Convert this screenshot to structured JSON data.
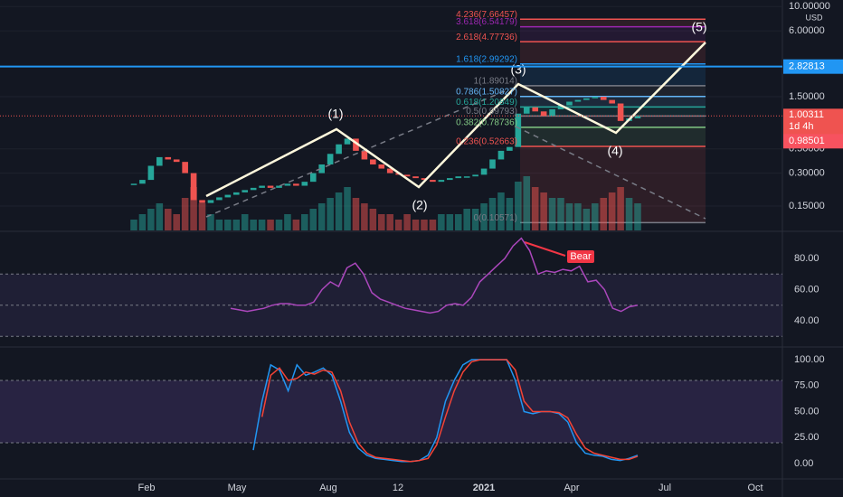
{
  "price_axis": {
    "unit": "USD",
    "ticks": [
      {
        "value": 10,
        "label": "10.00000"
      },
      {
        "value": 6,
        "label": "6.00000"
      },
      {
        "value": 1.5,
        "label": "1.50000"
      },
      {
        "value": 0.5,
        "label": "0.50000"
      },
      {
        "value": 0.3,
        "label": "0.30000"
      },
      {
        "value": 0.15,
        "label": "0.15000"
      }
    ]
  },
  "closes": [
    0.24,
    0.26,
    0.35,
    0.42,
    0.4,
    0.38,
    0.3,
    0.17,
    0.16,
    0.17,
    0.18,
    0.19,
    0.2,
    0.21,
    0.22,
    0.23,
    0.22,
    0.23,
    0.24,
    0.23,
    0.25,
    0.3,
    0.36,
    0.45,
    0.55,
    0.62,
    0.48,
    0.4,
    0.36,
    0.33,
    0.3,
    0.29,
    0.28,
    0.27,
    0.26,
    0.25,
    0.26,
    0.27,
    0.28,
    0.28,
    0.29,
    0.33,
    0.4,
    0.48,
    0.52,
    1.05,
    1.2,
    1.1,
    1.0,
    1.15,
    1.25,
    1.35,
    1.4,
    1.45,
    1.5,
    1.4,
    1.3,
    0.9,
    0.95,
    1.0
  ],
  "volumes": [
    2,
    3,
    4,
    5,
    4,
    3,
    6,
    8,
    5,
    3,
    2,
    2,
    2,
    3,
    2,
    2,
    2,
    2,
    3,
    2,
    3,
    4,
    5,
    6,
    7,
    8,
    6,
    5,
    4,
    3,
    3,
    2,
    3,
    2,
    2,
    2,
    3,
    3,
    3,
    4,
    4,
    5,
    6,
    7,
    6,
    9,
    10,
    8,
    7,
    6,
    6,
    5,
    5,
    4,
    5,
    6,
    7,
    8,
    6,
    5
  ],
  "fib_levels": [
    {
      "label": "4.236(7.66457)",
      "value": 7.66457,
      "color": "#ef5350"
    },
    {
      "label": "3.618(6.54179)",
      "value": 6.54179,
      "color": "#9c27b0"
    },
    {
      "label": "2.618(4.77736)",
      "value": 4.77736,
      "color": "#ef5350"
    },
    {
      "label": "1.618(2.99292)",
      "value": 2.99292,
      "color": "#2196f3"
    },
    {
      "label": "1(1.89014)",
      "value": 1.89014,
      "color": "#787b86"
    },
    {
      "label": "0.786(1.50827)",
      "value": 1.50827,
      "color": "#64b5f6"
    },
    {
      "label": "0.618(1.20849)",
      "value": 1.20849,
      "color": "#26a69a"
    },
    {
      "label": "0.5(0.99793)",
      "value": 0.99793,
      "color": "#787b86"
    },
    {
      "label": "0.382(0.78736)",
      "value": 0.78736,
      "color": "#81c784"
    },
    {
      "label": "0.236(0.52663)",
      "value": 0.52663,
      "color": "#ef5350"
    },
    {
      "label": "0(0.10571)",
      "value": 0.10571,
      "color": "#787b86"
    }
  ],
  "waves": [
    "(1)",
    "(2)",
    "(3)",
    "(4)",
    "(5)"
  ],
  "horizontal_line": {
    "value": 2.82813,
    "label": "2.82813"
  },
  "last_price": {
    "label": "1.00311",
    "countdown": "1d 4h",
    "prev": "0.98501"
  },
  "rsi": {
    "ticks": [
      {
        "value": 80,
        "label": "80.00"
      },
      {
        "value": 60,
        "label": "60.00"
      },
      {
        "value": 40,
        "label": "40.00"
      }
    ],
    "bands": [
      70,
      50,
      30
    ],
    "values": [
      48,
      47,
      46,
      47,
      48,
      50,
      51,
      51,
      50,
      50,
      52,
      60,
      65,
      62,
      74,
      77,
      70,
      58,
      54,
      52,
      50,
      48,
      47,
      46,
      45,
      46,
      50,
      51,
      50,
      55,
      65,
      70,
      75,
      80,
      88,
      93,
      85,
      70,
      72,
      71,
      73,
      72,
      75,
      65,
      66,
      60,
      48,
      46,
      49,
      50
    ],
    "signal": "Bear"
  },
  "stoch": {
    "ticks": [
      {
        "value": 100,
        "label": "100.00"
      },
      {
        "value": 75,
        "label": "75.00"
      },
      {
        "value": 50,
        "label": "50.00"
      },
      {
        "value": 25,
        "label": "25.00"
      },
      {
        "value": 0,
        "label": "0.00"
      }
    ],
    "bands": [
      80,
      20
    ],
    "k": [
      13,
      60,
      95,
      90,
      70,
      95,
      85,
      88,
      92,
      85,
      60,
      30,
      15,
      8,
      5,
      4,
      3,
      2,
      2,
      3,
      8,
      25,
      60,
      80,
      95,
      100,
      100,
      100,
      100,
      100,
      80,
      50,
      48,
      50,
      50,
      48,
      40,
      20,
      10,
      8,
      7,
      4,
      3,
      5,
      8
    ],
    "d": [
      null,
      45,
      85,
      92,
      80,
      82,
      88,
      86,
      90,
      88,
      70,
      40,
      20,
      10,
      6,
      5,
      4,
      3,
      2,
      3,
      5,
      18,
      45,
      70,
      88,
      98,
      100,
      100,
      100,
      100,
      90,
      60,
      50,
      50,
      50,
      49,
      44,
      28,
      15,
      10,
      8,
      6,
      4,
      4,
      7
    ]
  },
  "time_axis": [
    "Feb",
    "May",
    "Aug",
    "12",
    "2021",
    "Apr",
    "Jul",
    "Oct"
  ]
}
